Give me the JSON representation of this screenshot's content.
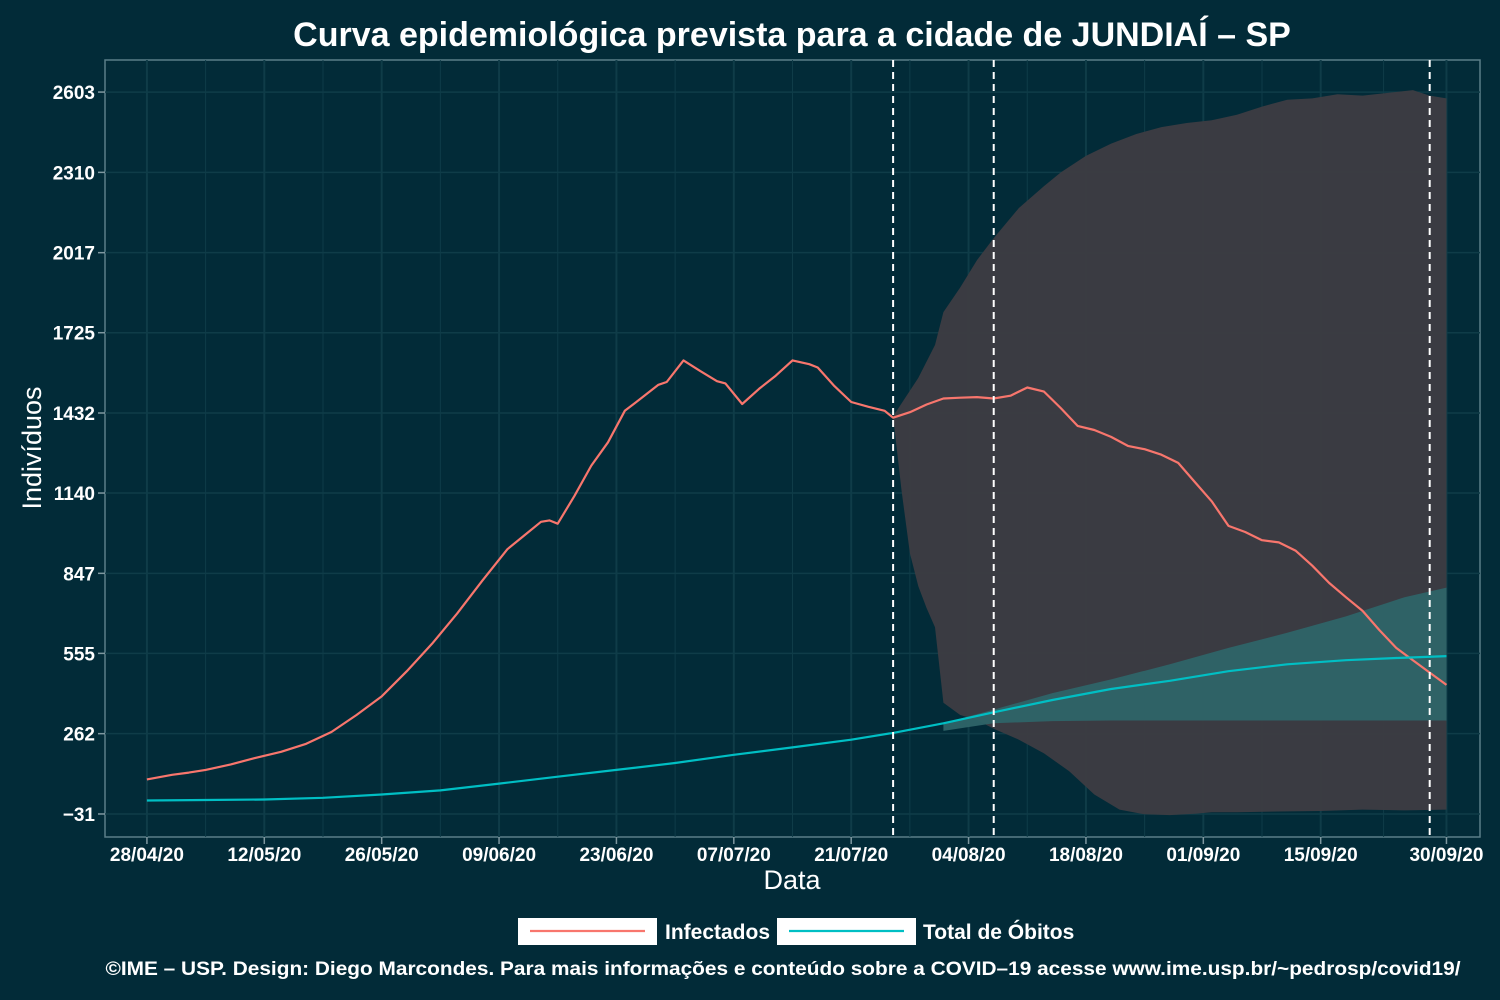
{
  "title": "Curva epidemiológica prevista para a cidade de JUNDIAÍ – SP",
  "footer": "©IME – USP. Design: Diego Marcondes. Para mais informações e conteúdo sobre a COVID–19 acesse www.ime.usp.br/~pedrosp/covid19/",
  "colors": {
    "background": "#022b38",
    "infectados": "#f8766d",
    "obitos": "#00bfc4",
    "band_infectados": "#3d3c42",
    "band_obitos": "#2e6468",
    "grid": "#0f3c48"
  },
  "chart_data": {
    "type": "line",
    "xlabel": "Data",
    "ylabel": "Indivíduos",
    "x_format": "DD/MM/YY",
    "xlim": [
      "2020-04-23",
      "2020-10-04"
    ],
    "ylim": [
      -115,
      2720
    ],
    "x_ticks": [
      "2020-04-28",
      "2020-05-12",
      "2020-05-26",
      "2020-06-09",
      "2020-06-23",
      "2020-07-07",
      "2020-07-21",
      "2020-08-04",
      "2020-08-18",
      "2020-09-01",
      "2020-09-15",
      "2020-09-30"
    ],
    "x_tick_labels": [
      "28/04/20",
      "12/05/20",
      "26/05/20",
      "09/06/20",
      "23/06/20",
      "07/07/20",
      "21/07/20",
      "04/08/20",
      "18/08/20",
      "01/09/20",
      "15/09/20",
      "30/09/20"
    ],
    "y_ticks": [
      2603,
      2310,
      2017,
      1725,
      1432,
      1140,
      847,
      555,
      262,
      -31
    ],
    "y_tick_labels": [
      "2603",
      "2310",
      "2017",
      "1725",
      "1432",
      "1140",
      "847",
      "555",
      "262",
      "−31"
    ],
    "vlines": [
      "2020-07-26",
      "2020-08-07",
      "2020-09-28"
    ],
    "grid": true,
    "legend_position": "bottom",
    "series": [
      {
        "name": "Infectados",
        "color": "#f8766d",
        "points": [
          [
            "2020-04-28",
            95
          ],
          [
            "2020-05-01",
            112
          ],
          [
            "2020-05-03",
            120
          ],
          [
            "2020-05-05",
            130
          ],
          [
            "2020-05-08",
            150
          ],
          [
            "2020-05-11",
            174
          ],
          [
            "2020-05-14",
            196
          ],
          [
            "2020-05-17",
            225
          ],
          [
            "2020-05-20",
            268
          ],
          [
            "2020-05-23",
            330
          ],
          [
            "2020-05-26",
            398
          ],
          [
            "2020-05-29",
            490
          ],
          [
            "2020-06-01",
            590
          ],
          [
            "2020-06-04",
            700
          ],
          [
            "2020-06-07",
            820
          ],
          [
            "2020-06-10",
            935
          ],
          [
            "2020-06-12",
            985
          ],
          [
            "2020-06-14",
            1035
          ],
          [
            "2020-06-15",
            1040
          ],
          [
            "2020-06-16",
            1028
          ],
          [
            "2020-06-18",
            1130
          ],
          [
            "2020-06-20",
            1240
          ],
          [
            "2020-06-22",
            1325
          ],
          [
            "2020-06-24",
            1440
          ],
          [
            "2020-06-26",
            1487
          ],
          [
            "2020-06-28",
            1535
          ],
          [
            "2020-06-29",
            1545
          ],
          [
            "2020-07-01",
            1624
          ],
          [
            "2020-07-03",
            1585
          ],
          [
            "2020-07-05",
            1548
          ],
          [
            "2020-07-06",
            1540
          ],
          [
            "2020-07-08",
            1465
          ],
          [
            "2020-07-10",
            1520
          ],
          [
            "2020-07-12",
            1568
          ],
          [
            "2020-07-14",
            1624
          ],
          [
            "2020-07-16",
            1610
          ],
          [
            "2020-07-17",
            1598
          ],
          [
            "2020-07-19",
            1530
          ],
          [
            "2020-07-21",
            1472
          ],
          [
            "2020-07-23",
            1455
          ],
          [
            "2020-07-25",
            1440
          ],
          [
            "2020-07-26",
            1415
          ],
          [
            "2020-07-28",
            1435
          ],
          [
            "2020-07-30",
            1463
          ],
          [
            "2020-08-01",
            1485
          ],
          [
            "2020-08-03",
            1488
          ],
          [
            "2020-08-05",
            1490
          ],
          [
            "2020-08-07",
            1485
          ],
          [
            "2020-08-09",
            1495
          ],
          [
            "2020-08-11",
            1525
          ],
          [
            "2020-08-13",
            1510
          ],
          [
            "2020-08-15",
            1450
          ],
          [
            "2020-08-17",
            1385
          ],
          [
            "2020-08-19",
            1370
          ],
          [
            "2020-08-21",
            1345
          ],
          [
            "2020-08-23",
            1312
          ],
          [
            "2020-08-25",
            1300
          ],
          [
            "2020-08-27",
            1280
          ],
          [
            "2020-08-29",
            1250
          ],
          [
            "2020-08-31",
            1180
          ],
          [
            "2020-09-02",
            1110
          ],
          [
            "2020-09-04",
            1020
          ],
          [
            "2020-09-06",
            998
          ],
          [
            "2020-09-08",
            968
          ],
          [
            "2020-09-10",
            960
          ],
          [
            "2020-09-12",
            930
          ],
          [
            "2020-09-14",
            875
          ],
          [
            "2020-09-16",
            812
          ],
          [
            "2020-09-18",
            760
          ],
          [
            "2020-09-20",
            710
          ],
          [
            "2020-09-22",
            640
          ],
          [
            "2020-09-24",
            575
          ],
          [
            "2020-09-26",
            530
          ],
          [
            "2020-09-28",
            485
          ],
          [
            "2020-09-30",
            440
          ]
        ]
      },
      {
        "name": "Total de Óbitos",
        "color": "#00bfc4",
        "points": [
          [
            "2020-04-28",
            18
          ],
          [
            "2020-05-05",
            20
          ],
          [
            "2020-05-12",
            22
          ],
          [
            "2020-05-19",
            28
          ],
          [
            "2020-05-26",
            40
          ],
          [
            "2020-06-02",
            55
          ],
          [
            "2020-06-09",
            80
          ],
          [
            "2020-06-16",
            105
          ],
          [
            "2020-06-23",
            130
          ],
          [
            "2020-06-30",
            155
          ],
          [
            "2020-07-07",
            185
          ],
          [
            "2020-07-14",
            212
          ],
          [
            "2020-07-21",
            240
          ],
          [
            "2020-07-26",
            265
          ],
          [
            "2020-08-01",
            300
          ],
          [
            "2020-08-07",
            340
          ],
          [
            "2020-08-14",
            385
          ],
          [
            "2020-08-21",
            425
          ],
          [
            "2020-08-28",
            455
          ],
          [
            "2020-09-04",
            490
          ],
          [
            "2020-09-11",
            515
          ],
          [
            "2020-09-18",
            530
          ],
          [
            "2020-09-24",
            538
          ],
          [
            "2020-09-30",
            545
          ]
        ]
      }
    ],
    "bands": [
      {
        "series": "Infectados",
        "upper": [
          [
            "2020-07-26",
            1420
          ],
          [
            "2020-07-29",
            1560
          ],
          [
            "2020-07-31",
            1680
          ],
          [
            "2020-08-01",
            1800
          ],
          [
            "2020-08-03",
            1890
          ],
          [
            "2020-08-05",
            1990
          ],
          [
            "2020-08-07",
            2070
          ],
          [
            "2020-08-10",
            2180
          ],
          [
            "2020-08-13",
            2260
          ],
          [
            "2020-08-15",
            2310
          ],
          [
            "2020-08-18",
            2370
          ],
          [
            "2020-08-21",
            2415
          ],
          [
            "2020-08-24",
            2450
          ],
          [
            "2020-08-27",
            2475
          ],
          [
            "2020-08-30",
            2490
          ],
          [
            "2020-09-02",
            2500
          ],
          [
            "2020-09-05",
            2520
          ],
          [
            "2020-09-08",
            2550
          ],
          [
            "2020-09-11",
            2575
          ],
          [
            "2020-09-14",
            2580
          ],
          [
            "2020-09-17",
            2595
          ],
          [
            "2020-09-20",
            2590
          ],
          [
            "2020-09-23",
            2600
          ],
          [
            "2020-09-26",
            2610
          ],
          [
            "2020-09-28",
            2590
          ],
          [
            "2020-09-30",
            2580
          ]
        ],
        "lower": [
          [
            "2020-07-26",
            1420
          ],
          [
            "2020-07-27",
            1150
          ],
          [
            "2020-07-28",
            920
          ],
          [
            "2020-07-29",
            800
          ],
          [
            "2020-07-30",
            720
          ],
          [
            "2020-07-31",
            650
          ],
          [
            "2020-08-01",
            375
          ],
          [
            "2020-08-03",
            330
          ],
          [
            "2020-08-05",
            312
          ],
          [
            "2020-08-07",
            280
          ],
          [
            "2020-08-10",
            240
          ],
          [
            "2020-08-13",
            190
          ],
          [
            "2020-08-16",
            125
          ],
          [
            "2020-08-19",
            40
          ],
          [
            "2020-08-22",
            -15
          ],
          [
            "2020-08-25",
            -32
          ],
          [
            "2020-08-28",
            -35
          ],
          [
            "2020-08-31",
            -30
          ],
          [
            "2020-09-02",
            -25
          ],
          [
            "2020-09-05",
            -25
          ],
          [
            "2020-09-10",
            -22
          ],
          [
            "2020-09-15",
            -20
          ],
          [
            "2020-09-20",
            -15
          ],
          [
            "2020-09-25",
            -18
          ],
          [
            "2020-09-30",
            -15
          ]
        ]
      },
      {
        "series": "Total de Óbitos",
        "upper": [
          [
            "2020-08-01",
            300
          ],
          [
            "2020-08-07",
            350
          ],
          [
            "2020-08-14",
            410
          ],
          [
            "2020-08-21",
            460
          ],
          [
            "2020-08-28",
            515
          ],
          [
            "2020-09-04",
            575
          ],
          [
            "2020-09-11",
            630
          ],
          [
            "2020-09-18",
            690
          ],
          [
            "2020-09-25",
            760
          ],
          [
            "2020-09-30",
            795
          ]
        ],
        "lower": [
          [
            "2020-08-01",
            272
          ],
          [
            "2020-08-07",
            300
          ],
          [
            "2020-08-14",
            308
          ],
          [
            "2020-08-21",
            310
          ],
          [
            "2020-08-28",
            310
          ],
          [
            "2020-09-04",
            310
          ],
          [
            "2020-09-11",
            310
          ],
          [
            "2020-09-18",
            310
          ],
          [
            "2020-09-25",
            310
          ],
          [
            "2020-09-30",
            310
          ]
        ]
      }
    ]
  }
}
